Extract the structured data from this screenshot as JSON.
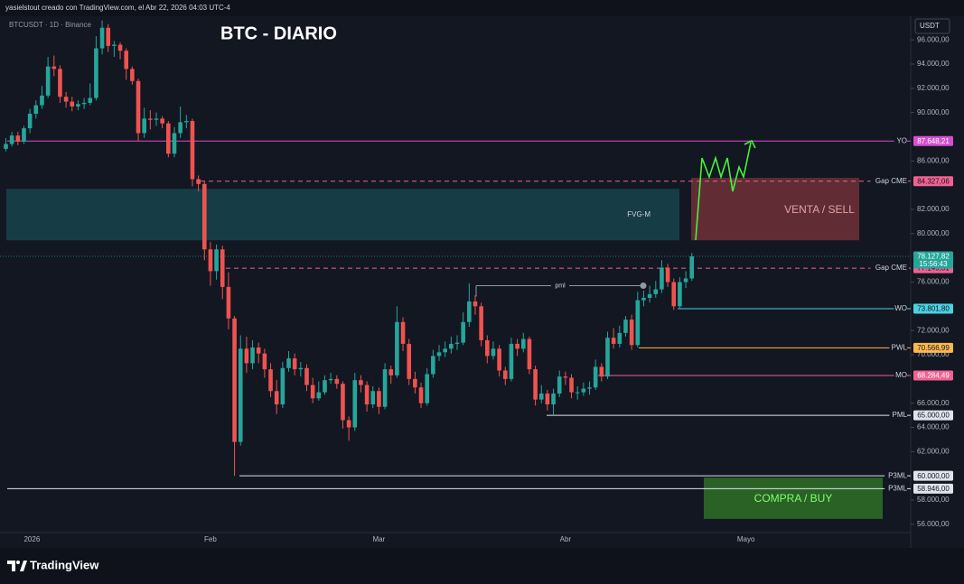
{
  "header": "yasielstout creado con TradingView.com, el Abr 22, 2026 04:03 UTC-4",
  "footer": {
    "brand": "TradingView"
  },
  "chart_data": {
    "type": "candlestick",
    "title": "BTC - DIARIO",
    "subtitle": "BTCUSDT · 1D · Binance",
    "axis_unit": "USDT",
    "up_color": "#26a69a",
    "down_color": "#ef5350",
    "categories": [
      null,
      null,
      null,
      "2026",
      null,
      null,
      null,
      null,
      null,
      null,
      null,
      null,
      null,
      null,
      null,
      null,
      null,
      null,
      null,
      null,
      null,
      null,
      null,
      null,
      null,
      null,
      null,
      null,
      null,
      null,
      null,
      null,
      null,
      null,
      "Feb",
      null,
      null,
      null,
      null,
      null,
      null,
      null,
      null,
      null,
      null,
      null,
      null,
      null,
      null,
      null,
      null,
      null,
      null,
      null,
      null,
      null,
      null,
      null,
      null,
      null,
      null,
      null,
      "Mar",
      null,
      null,
      null,
      null,
      null,
      null,
      null,
      null,
      null,
      null,
      null,
      null,
      null,
      null,
      null,
      null,
      null,
      null,
      null,
      null,
      null,
      null,
      null,
      null,
      null,
      null,
      null,
      null,
      null,
      null,
      "Abr",
      null,
      null,
      null,
      null,
      null,
      null,
      null,
      null,
      null,
      null,
      null,
      null,
      null,
      null,
      null,
      null,
      null,
      null,
      null,
      null,
      null,
      null,
      null,
      null,
      null,
      null,
      null,
      null,
      null,
      "Mayo"
    ],
    "open": [
      87000,
      87400,
      88100,
      87600,
      88700,
      89900,
      90600,
      91400,
      93800,
      93600,
      91300,
      90900,
      90500,
      90700,
      90800,
      91200,
      95300,
      97000,
      95500,
      95600,
      95100,
      93600,
      92600,
      88300,
      89500,
      89400,
      89500,
      89100,
      86600,
      88300,
      89200,
      89300,
      84500,
      84100,
      78700,
      76900,
      78700,
      75600,
      73000,
      62800,
      70500,
      69300,
      70600,
      70100,
      68800,
      67000,
      65900,
      68900,
      69700,
      68800,
      68900,
      67500,
      66400,
      66900,
      67900,
      68000,
      67600,
      64600,
      64000,
      67900,
      67500,
      65900,
      67000,
      65700,
      68800,
      68300,
      72700,
      70900,
      68000,
      67300,
      66000,
      68400,
      69900,
      70200,
      70500,
      70900,
      71000,
      72700,
      74400,
      74000,
      71200,
      69900,
      70500,
      68700,
      68000,
      70900,
      70500,
      71300,
      68800,
      66300,
      66800,
      65900,
      66800,
      68200,
      68100,
      66900,
      66900,
      67200,
      67300,
      69000,
      68200,
      71400,
      70900,
      71800,
      72900,
      70800,
      74500,
      74700,
      75000,
      75400,
      77200,
      76000,
      74000,
      76000,
      76300,
      null,
      null,
      null,
      null,
      null,
      null,
      null,
      null,
      null
    ],
    "high": [
      87900,
      88400,
      88400,
      88900,
      90300,
      91000,
      92200,
      94600,
      94700,
      93900,
      91700,
      91300,
      91000,
      91200,
      92400,
      96300,
      97600,
      97300,
      95900,
      95800,
      95300,
      93800,
      92800,
      90400,
      90200,
      90000,
      89700,
      89300,
      88800,
      90500,
      89800,
      89500,
      84800,
      84300,
      79300,
      79100,
      79000,
      76800,
      73200,
      71600,
      71500,
      71200,
      71000,
      70500,
      69300,
      67900,
      69400,
      70300,
      70100,
      69400,
      69200,
      68100,
      67800,
      68300,
      68500,
      68300,
      67800,
      64900,
      68500,
      68300,
      67800,
      67400,
      67300,
      69300,
      69100,
      74000,
      73100,
      71300,
      68600,
      67700,
      68900,
      70400,
      70800,
      71100,
      71500,
      71600,
      73500,
      75900,
      74900,
      74300,
      71600,
      71100,
      70800,
      69000,
      71400,
      71300,
      71800,
      71500,
      69100,
      67500,
      67100,
      67200,
      68700,
      68600,
      68400,
      67400,
      67700,
      67800,
      69600,
      69300,
      71900,
      72200,
      72400,
      73200,
      73300,
      75200,
      75300,
      75700,
      76100,
      77800,
      77500,
      76300,
      76400,
      76900,
      78400,
      null,
      null,
      null,
      null,
      null,
      null,
      null,
      null,
      null
    ],
    "low": [
      86800,
      87200,
      87300,
      87400,
      88300,
      89500,
      90300,
      91200,
      93000,
      90800,
      90400,
      90100,
      90200,
      90300,
      90600,
      91000,
      94800,
      95000,
      94600,
      94400,
      92700,
      92300,
      87600,
      87900,
      88600,
      88900,
      88700,
      86300,
      86300,
      87900,
      88700,
      83900,
      83500,
      77800,
      75700,
      76200,
      74600,
      72100,
      60000,
      62500,
      68500,
      68800,
      69300,
      68100,
      66500,
      65100,
      65600,
      68600,
      68300,
      68200,
      67000,
      66000,
      66200,
      66700,
      67600,
      67200,
      63900,
      62900,
      63700,
      66900,
      65300,
      65600,
      65100,
      65500,
      67600,
      68100,
      70300,
      67500,
      66800,
      65600,
      65800,
      68100,
      69500,
      69800,
      70100,
      70400,
      70800,
      72300,
      73300,
      70700,
      69300,
      69600,
      68200,
      67500,
      67800,
      69900,
      70200,
      68400,
      65800,
      66000,
      65400,
      65000,
      66500,
      67500,
      66400,
      66300,
      66600,
      66700,
      67100,
      67800,
      68000,
      70500,
      70600,
      71500,
      70400,
      70600,
      74000,
      74300,
      74700,
      75100,
      75600,
      73700,
      73800,
      75500,
      76100,
      null,
      null,
      null,
      null,
      null,
      null,
      null,
      null,
      null
    ],
    "close": [
      87400,
      88100,
      87600,
      88700,
      89900,
      90600,
      91400,
      93800,
      93600,
      91300,
      90900,
      90500,
      90700,
      90800,
      91200,
      95300,
      97000,
      95500,
      95600,
      95100,
      93600,
      92600,
      88300,
      89500,
      89400,
      89500,
      89100,
      86600,
      88300,
      89200,
      89300,
      84500,
      84100,
      78700,
      76900,
      78700,
      75600,
      73000,
      62800,
      70500,
      69300,
      70600,
      70100,
      68800,
      67000,
      65900,
      68900,
      69700,
      68800,
      68900,
      67500,
      66400,
      66900,
      67900,
      68000,
      67600,
      64600,
      64000,
      67900,
      67500,
      65900,
      67000,
      65700,
      68800,
      68300,
      72700,
      70900,
      68000,
      67300,
      66000,
      68400,
      69900,
      70200,
      70500,
      70900,
      71000,
      72700,
      74400,
      74000,
      71200,
      69900,
      70500,
      68700,
      68000,
      70900,
      70500,
      71300,
      68800,
      66300,
      66800,
      65900,
      66800,
      68200,
      68100,
      66900,
      66900,
      67200,
      67300,
      69000,
      68200,
      71400,
      70900,
      71800,
      72900,
      70800,
      74500,
      74700,
      75000,
      75400,
      77200,
      76000,
      74000,
      76000,
      76300,
      78127.82,
      null,
      null,
      null,
      null,
      null,
      null,
      null,
      null,
      null
    ],
    "ylim": [
      54200,
      97950
    ],
    "yticks": [
      {
        "value": 96000,
        "label": "96.000,00"
      },
      {
        "value": 94000,
        "label": "94.000,00"
      },
      {
        "value": 92000,
        "label": "92.000,00"
      },
      {
        "value": 90000,
        "label": "90.000,00"
      },
      {
        "value": 86000,
        "label": "86.000,00"
      },
      {
        "value": 82000,
        "label": "82.000,00"
      },
      {
        "value": 80000,
        "label": "80.000,00"
      },
      {
        "value": 76000,
        "label": "76.000,00"
      },
      {
        "value": 72000,
        "label": "72.000,00"
      },
      {
        "value": 70000,
        "label": "70.000,00"
      },
      {
        "value": 66000,
        "label": "66.000,00"
      },
      {
        "value": 64000,
        "label": "64.000,00"
      },
      {
        "value": 62000,
        "label": "62.000,00"
      },
      {
        "value": 58000,
        "label": "58.000,00"
      },
      {
        "value": 56000,
        "label": "56.000,00"
      }
    ],
    "last_price": {
      "value": 78127.82,
      "label": "78.127,82",
      "countdown": "15:56:43",
      "color": "#26a69a"
    },
    "levels": [
      {
        "label": "YO",
        "value": 87648.21,
        "value_label": "87.648,21",
        "color": "#d64fd0",
        "style": "solid"
      },
      {
        "label": "Gap CME",
        "value": 84327.06,
        "value_label": "84.327,06",
        "color": "#f06292",
        "style": "dashed"
      },
      {
        "label": "Gap CME",
        "value": 77149.31,
        "value_label": "77.149,31",
        "color": "#f06292",
        "style": "dashed"
      },
      {
        "label": "WO",
        "value": 73801.8,
        "value_label": "73.801,80",
        "color": "#4dd0e1",
        "style": "solid"
      },
      {
        "label": "PWL",
        "value": 70566.99,
        "value_label": "70.566,99",
        "color": "#ffb74d",
        "style": "solid"
      },
      {
        "label": "MO",
        "value": 68284.49,
        "value_label": "68.284,49",
        "color": "#f06292",
        "style": "solid"
      },
      {
        "label": "PML",
        "value": 65000,
        "value_label": "65.000,00",
        "color": "#e0e3eb",
        "style": "solid"
      },
      {
        "label": "P3ML",
        "value": 60000,
        "value_label": "60.000,00",
        "color": "#e0e3eb",
        "style": "solid"
      },
      {
        "label": "P3ML",
        "value": 58946,
        "value_label": "58.946,00",
        "color": "#e0e3eb",
        "style": "solid"
      }
    ],
    "pml": {
      "label": "pml",
      "value": 75700
    },
    "zones": [
      {
        "label": "FVG-M",
        "top": 83700,
        "bottom": 79450,
        "color": "#17414a"
      },
      {
        "label": "VENTA / SELL",
        "top": 84600,
        "bottom": 79450,
        "color": "#6a2f36"
      },
      {
        "label": "COMPRA / BUY",
        "top": 59850,
        "bottom": 56450,
        "color": "#2d6a27"
      }
    ]
  }
}
